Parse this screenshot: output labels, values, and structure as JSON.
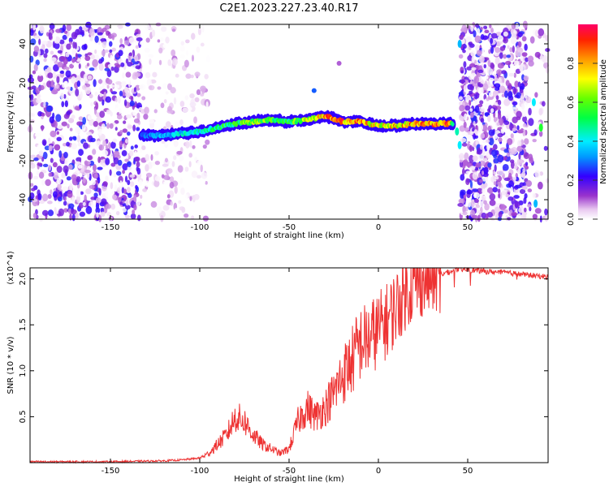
{
  "title": "C2E1.2023.227.23.40.R17",
  "chart_data": [
    {
      "type": "heatmap",
      "xlabel": "Height of straight line (km)",
      "ylabel": "Frequency (Hz)",
      "xlim": [
        -195,
        95
      ],
      "ylim": [
        -50,
        50
      ],
      "x_ticks": [
        -150,
        -100,
        -50,
        0,
        50
      ],
      "y_ticks": [
        -40,
        -20,
        0,
        20,
        40
      ],
      "colorbar": {
        "label": "Normalized spectral amplitude",
        "range": [
          0.0,
          1.0
        ],
        "ticks": [
          0.0,
          0.2,
          0.4,
          0.6,
          0.8
        ]
      },
      "ridge": {
        "x": [
          -133,
          -120,
          -110,
          -100,
          -90,
          -80,
          -70,
          -60,
          -50,
          -40,
          -30,
          -20,
          -10,
          0,
          10,
          20,
          30,
          40,
          42
        ],
        "freq": [
          -7,
          -7,
          -6,
          -5,
          -3,
          -1,
          0,
          1,
          0,
          1,
          3,
          0,
          0,
          -2,
          -2,
          -1,
          -1,
          -1,
          -1
        ],
        "amplitude": [
          0.3,
          0.4,
          0.45,
          0.5,
          0.55,
          0.6,
          0.7,
          0.65,
          0.6,
          0.75,
          0.9,
          0.95,
          0.9,
          0.8,
          0.85,
          0.9,
          0.95,
          0.95,
          0.5
        ]
      },
      "noise_regions": [
        [
          -195,
          -133
        ],
        [
          46,
          83
        ]
      ]
    },
    {
      "type": "line",
      "xlabel": "Height of straight line (km)",
      "ylabel": "SNR (10 * v/v)",
      "y_multiplier": "(x10^4)",
      "xlim": [
        -195,
        95
      ],
      "ylim": [
        0,
        2.12
      ],
      "x_ticks": [
        -150,
        -100,
        -50,
        0,
        50
      ],
      "y_ticks": [
        0.5,
        1.0,
        1.5,
        2.0
      ],
      "y_tick_labels": [
        "0.5",
        "1.0",
        "1.5",
        "2.0"
      ],
      "line_color": "#ee3333",
      "series": [
        {
          "x": [
            -195,
            -150,
            -120,
            -110,
            -100,
            -95,
            -90,
            -85,
            -80,
            -75,
            -70,
            -65,
            -60,
            -55,
            -50,
            -45,
            -40,
            -35,
            -30,
            -25,
            -20,
            -15,
            -10,
            -5,
            0,
            5,
            10,
            15,
            20,
            25,
            30,
            35,
            40,
            45,
            50,
            60,
            70,
            80,
            90,
            95
          ],
          "values": [
            0.01,
            0.01,
            0.02,
            0.03,
            0.05,
            0.1,
            0.2,
            0.3,
            0.5,
            0.45,
            0.3,
            0.2,
            0.15,
            0.1,
            0.15,
            0.45,
            0.6,
            0.5,
            0.6,
            0.75,
            0.95,
            1.1,
            1.3,
            1.35,
            1.45,
            1.55,
            1.7,
            1.85,
            1.95,
            2.0,
            2.03,
            2.05,
            2.08,
            2.1,
            2.1,
            2.08,
            2.07,
            2.05,
            2.03,
            2.02
          ]
        }
      ]
    }
  ]
}
